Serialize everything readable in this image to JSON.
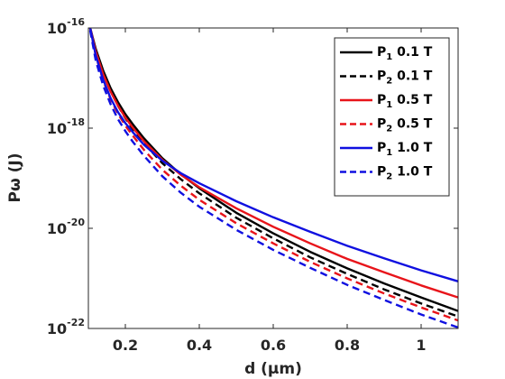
{
  "chart_data": {
    "type": "line",
    "title": "",
    "xlabel": "d (μm)",
    "ylabel": "Pω (J)",
    "xlim": [
      0.1,
      1.1
    ],
    "ylim_log10": [
      -22,
      -16
    ],
    "yscale": "log",
    "x_ticks": [
      {
        "value": 0.2,
        "label": "0.2"
      },
      {
        "value": 0.4,
        "label": "0.4"
      },
      {
        "value": 0.6,
        "label": "0.6"
      },
      {
        "value": 0.8,
        "label": "0.8"
      },
      {
        "value": 1.0,
        "label": "1"
      }
    ],
    "y_ticks": [
      {
        "log10": -16,
        "base": "10",
        "exp": "-16"
      },
      {
        "log10": -18,
        "base": "10",
        "exp": "-18"
      },
      {
        "log10": -20,
        "base": "10",
        "exp": "-20"
      },
      {
        "log10": -22,
        "base": "10",
        "exp": "-22"
      }
    ],
    "grid": false,
    "legend_placement": "top-right",
    "x": [
      0.105,
      0.12,
      0.14,
      0.16,
      0.18,
      0.2,
      0.22,
      0.25,
      0.3,
      0.35,
      0.4,
      0.5,
      0.6,
      0.7,
      0.8,
      0.9,
      1.0,
      1.1
    ],
    "series": [
      {
        "name": "P",
        "sub": "1",
        "suffix": " 0.1 T",
        "color": "#000000",
        "dash": "solid",
        "log10_values": [
          -16.0,
          -16.42,
          -16.85,
          -17.2,
          -17.48,
          -17.72,
          -17.92,
          -18.2,
          -18.6,
          -18.92,
          -19.2,
          -19.69,
          -20.1,
          -20.47,
          -20.8,
          -21.1,
          -21.38,
          -21.65
        ]
      },
      {
        "name": "P",
        "sub": "2",
        "suffix": " 0.1 T",
        "color": "#000000",
        "dash": "dashed",
        "log10_values": [
          -16.0,
          -16.45,
          -16.9,
          -17.25,
          -17.55,
          -17.8,
          -18.02,
          -18.3,
          -18.7,
          -19.02,
          -19.3,
          -19.79,
          -20.2,
          -20.58,
          -20.91,
          -21.22,
          -21.5,
          -21.76
        ]
      },
      {
        "name": "P",
        "sub": "1",
        "suffix": " 0.5 T",
        "color": "#e8141a",
        "dash": "solid",
        "log10_values": [
          -16.0,
          -16.47,
          -16.92,
          -17.27,
          -17.55,
          -17.79,
          -17.99,
          -18.26,
          -18.63,
          -18.93,
          -19.18,
          -19.6,
          -19.97,
          -20.3,
          -20.61,
          -20.88,
          -21.14,
          -21.38
        ]
      },
      {
        "name": "P",
        "sub": "2",
        "suffix": " 0.5 T",
        "color": "#e8141a",
        "dash": "dashed",
        "log10_values": [
          -16.0,
          -16.55,
          -17.05,
          -17.42,
          -17.71,
          -17.95,
          -18.15,
          -18.43,
          -18.83,
          -19.15,
          -19.43,
          -19.9,
          -20.3,
          -20.67,
          -21.0,
          -21.3,
          -21.58,
          -21.84
        ]
      },
      {
        "name": "P",
        "sub": "1",
        "suffix": " 1.0 T",
        "color": "#1010e0",
        "dash": "solid",
        "log10_values": [
          -16.0,
          -16.55,
          -17.03,
          -17.4,
          -17.68,
          -17.9,
          -18.08,
          -18.33,
          -18.65,
          -18.9,
          -19.1,
          -19.46,
          -19.78,
          -20.07,
          -20.35,
          -20.6,
          -20.84,
          -21.06
        ]
      },
      {
        "name": "P",
        "sub": "2",
        "suffix": " 1.0 T",
        "color": "#1010e0",
        "dash": "dashed",
        "log10_values": [
          -16.05,
          -16.65,
          -17.15,
          -17.52,
          -17.82,
          -18.06,
          -18.27,
          -18.55,
          -18.96,
          -19.29,
          -19.57,
          -20.03,
          -20.43,
          -20.79,
          -21.13,
          -21.43,
          -21.72,
          -21.98
        ]
      }
    ]
  }
}
